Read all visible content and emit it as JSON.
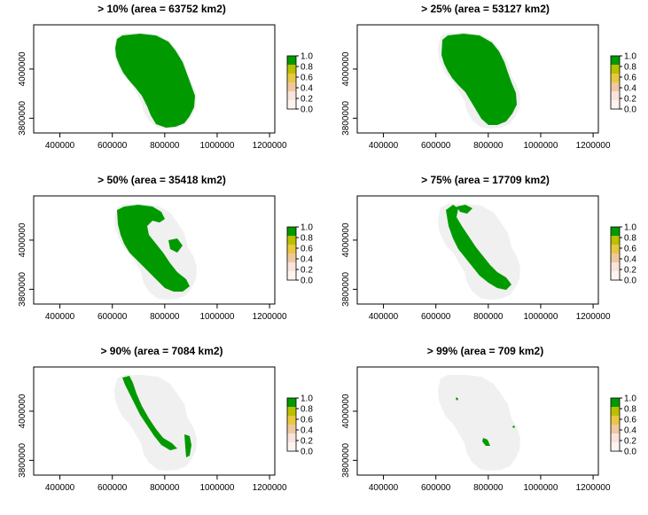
{
  "panels": [
    {
      "title": "> 10% (area = 63752 km2)",
      "threshold": 10,
      "area_km2": 63752
    },
    {
      "title": "> 25% (area = 53127 km2)",
      "threshold": 25,
      "area_km2": 53127
    },
    {
      "title": "> 50% (area = 35418 km2)",
      "threshold": 50,
      "area_km2": 35418
    },
    {
      "title": "> 75% (area = 17709 km2)",
      "threshold": 75,
      "area_km2": 17709
    },
    {
      "title": "> 90% (area = 7084 km2)",
      "threshold": 90,
      "area_km2": 7084
    },
    {
      "title": "> 99% (area = 709 km2)",
      "threshold": 99,
      "area_km2": 709
    }
  ],
  "axes": {
    "x_ticks": [
      "400000",
      "600000",
      "800000",
      "1000000",
      "1200000"
    ],
    "y_ticks": [
      "3800000",
      "4000000"
    ]
  },
  "legend": {
    "labels": [
      "1.0",
      "0.8",
      "0.6",
      "0.4",
      "0.2",
      "0.0"
    ],
    "colors": [
      "#009a00",
      "#b8c000",
      "#e8c840",
      "#f0c8a0",
      "#f8e4dc",
      "#fdf4f0"
    ]
  },
  "colors": {
    "background_region": "#f0f0f0",
    "selected_region": "#009a00"
  }
}
